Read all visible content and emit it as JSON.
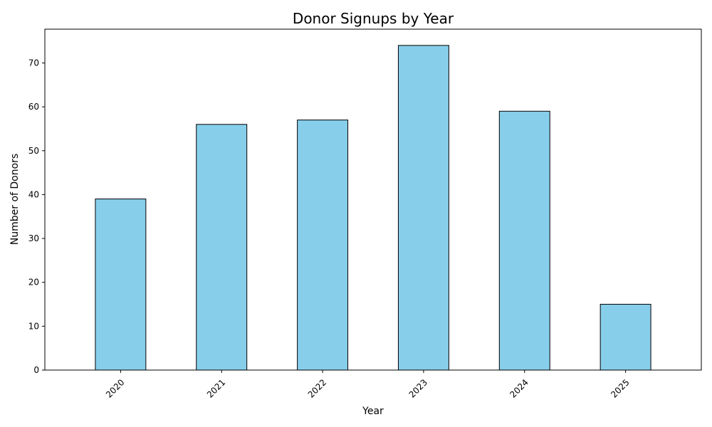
{
  "chart_data": {
    "type": "bar",
    "title": "Donor Signups by Year",
    "xlabel": "Year",
    "ylabel": "Number of Donors",
    "categories": [
      "2020",
      "2021",
      "2022",
      "2023",
      "2024",
      "2025"
    ],
    "values": [
      39,
      56,
      57,
      74,
      59,
      15
    ],
    "ylim": [
      0,
      77.7
    ],
    "yticks": [
      0,
      10,
      20,
      30,
      40,
      50,
      60,
      70
    ],
    "xtick_rotation_deg": 45,
    "grid": false,
    "legend": "none",
    "bar_color": "#87CEEB",
    "bar_edge_color": "#000000"
  }
}
